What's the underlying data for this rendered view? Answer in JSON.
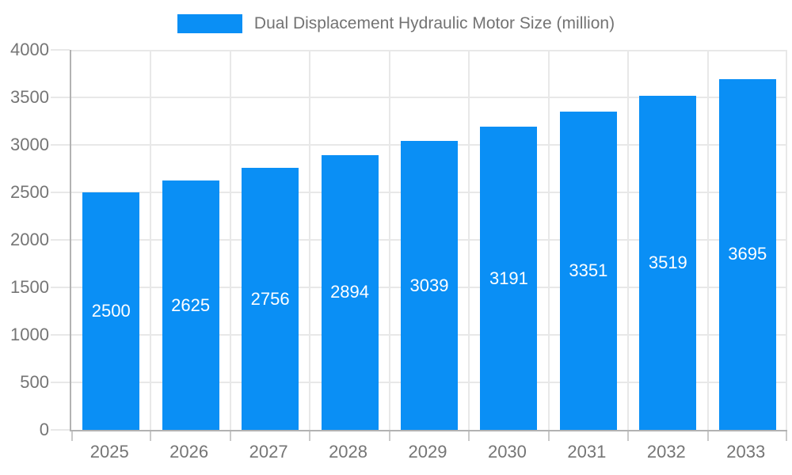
{
  "legend": {
    "label": "Dual Displacement Hydraulic Motor Size (million)"
  },
  "chart_data": {
    "type": "bar",
    "title": "Dual Displacement Hydraulic Motor Size (million)",
    "categories": [
      "2025",
      "2026",
      "2027",
      "2028",
      "2029",
      "2030",
      "2031",
      "2032",
      "2033"
    ],
    "values": [
      2500,
      2625,
      2756,
      2894,
      3039,
      3191,
      3351,
      3519,
      3695
    ],
    "xlabel": "",
    "ylabel": "",
    "ylim": [
      0,
      4000
    ],
    "ytick_step": 500,
    "ytick_labels": [
      "0",
      "500",
      "1000",
      "1500",
      "2000",
      "2500",
      "3000",
      "3500",
      "4000"
    ],
    "grid": true,
    "legend_position": "top-center",
    "data_labels": "centered-inside-bars",
    "colors": {
      "bar": "#0a8ff5",
      "data_label": "#ffffff",
      "axis_line": "#b2b2b2",
      "grid_line": "#e8e8e8",
      "tick_line": "#c9c9c9",
      "axis_text": "#757575",
      "legend_text": "#737373",
      "background": "#ffffff"
    }
  }
}
